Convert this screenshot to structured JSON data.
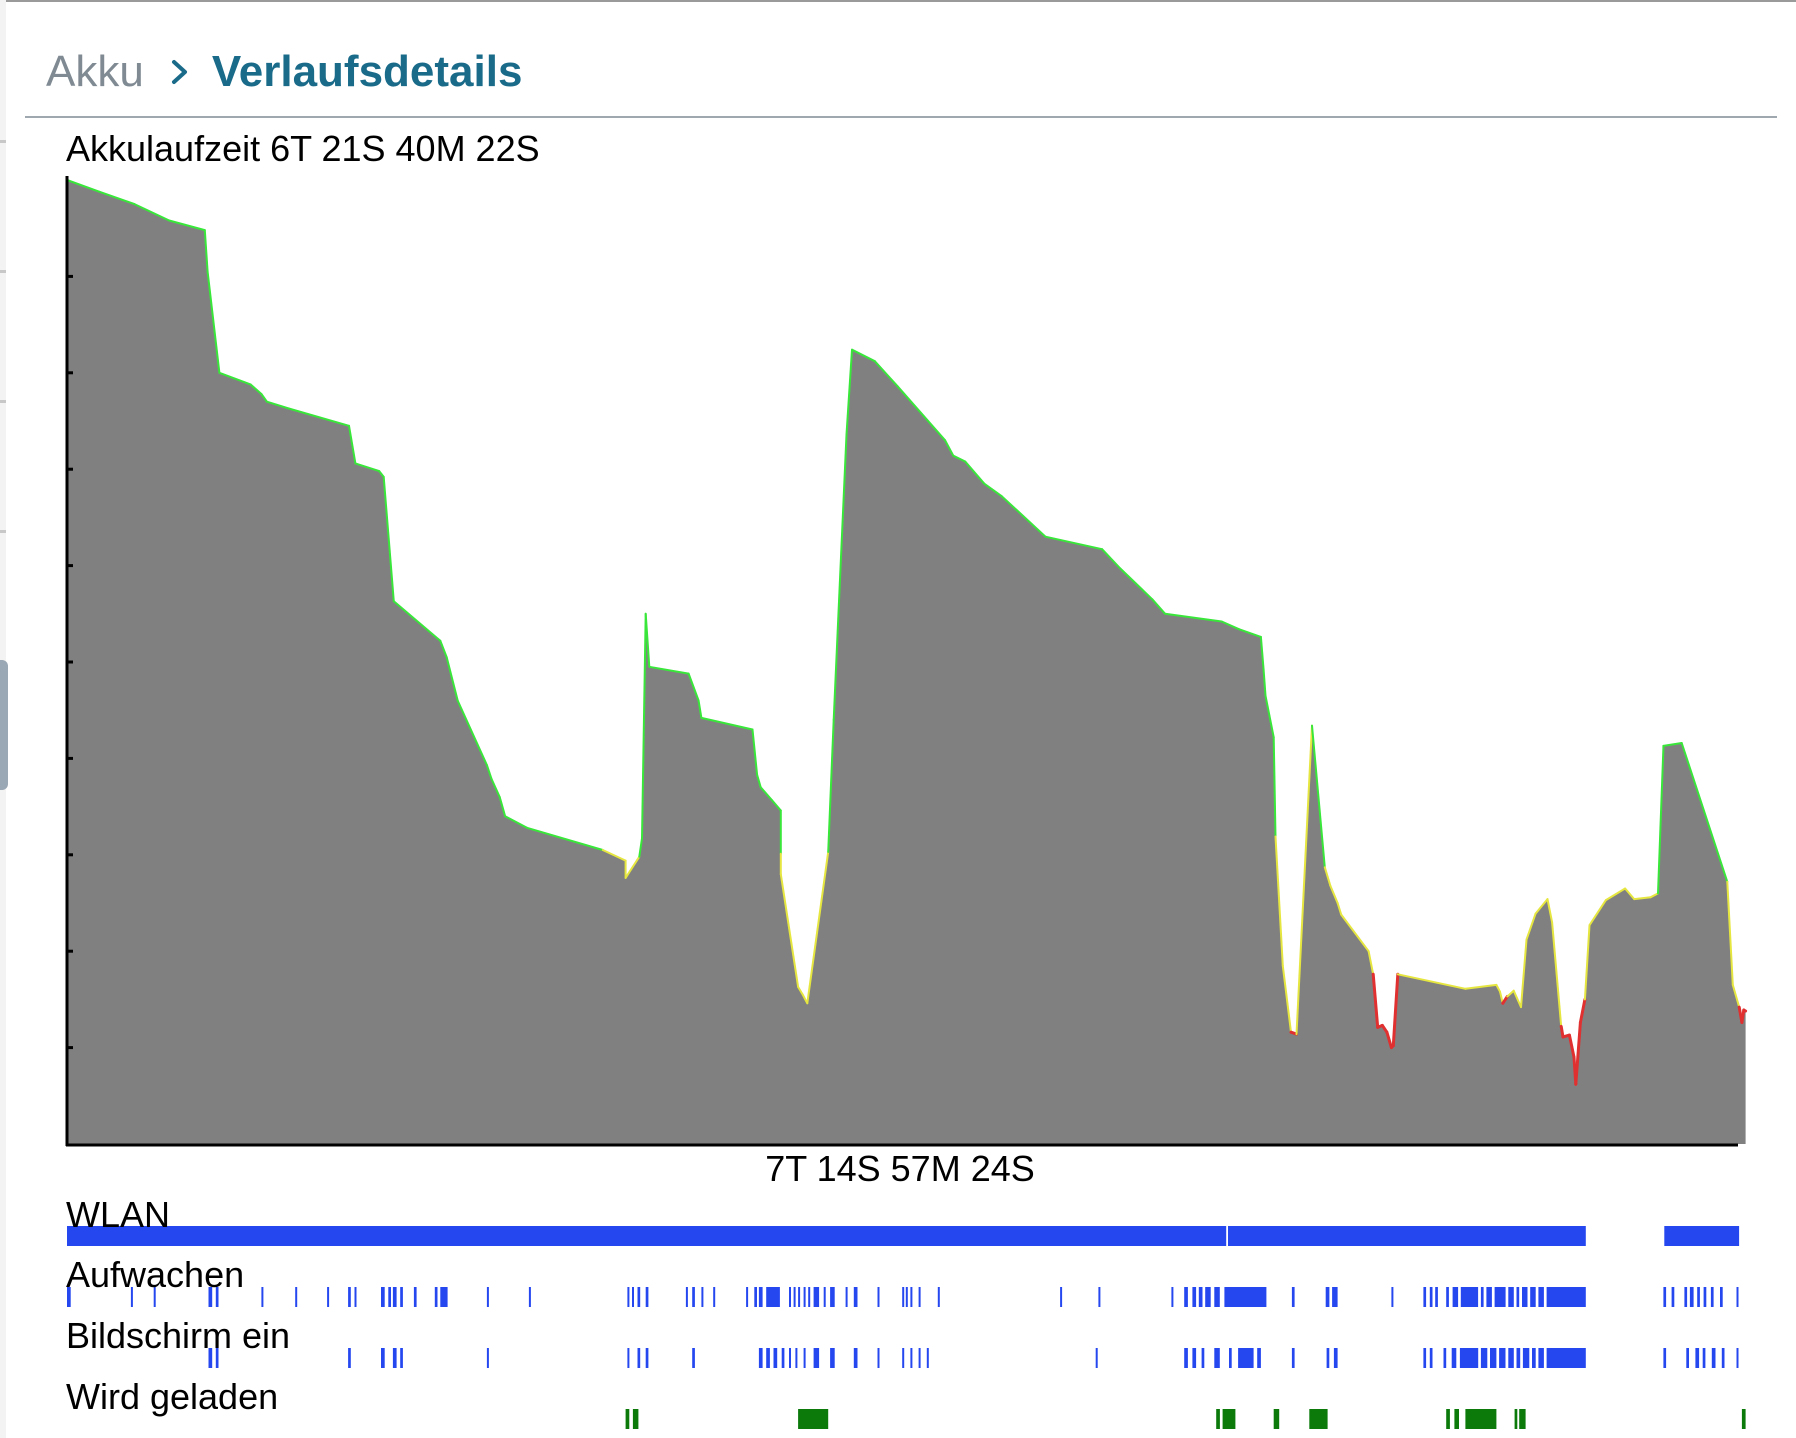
{
  "header": {
    "parent": "Akku",
    "current": "Verlaufsdetails"
  },
  "graph": {
    "battery_time_label": "Akkulaufzeit 6T 21S 40M 22S",
    "end_time_label": "7T 14S 57M 24S"
  },
  "tracks": [
    {
      "label": "WLAN",
      "color": "#2547f0"
    },
    {
      "label": "Aufwachen",
      "color": "#2547f0"
    },
    {
      "label": "Bildschirm ein",
      "color": "#2547f0"
    },
    {
      "label": "Wird geladen",
      "color": "#0b7a0b"
    }
  ],
  "colors": {
    "area_fill": "#808080",
    "level_high": "#39e63a",
    "level_mid": "#e6e640",
    "level_low": "#e03030",
    "accent": "#1a6b8a"
  },
  "chart_data": {
    "type": "area",
    "title": "Akkulaufzeit 6T 21S 40M 22S",
    "xlabel": "7T 14S 57M 24S",
    "ylabel": "",
    "x_unit": "hours since start",
    "x_range": [
      0,
      182.96
    ],
    "ylim": [
      0,
      100
    ],
    "grid": false,
    "color_thresholds": {
      "high_above": 30,
      "low_below": 15
    },
    "series": [
      {
        "name": "",
        "x": [
          0,
          3.5,
          7.4,
          11.2,
          15.1,
          15.4,
          16.7,
          20.1,
          21.3,
          21.9,
          24.3,
          30.9,
          31.6,
          34.2,
          34.7,
          35.8,
          40.9,
          41.6,
          42.8,
          46.0,
          46.5,
          47.4,
          48.0,
          50.4,
          58.7,
          61.2,
          61.2,
          62.7,
          63.0,
          63.4,
          63.8,
          68.1,
          69.2,
          69.5,
          75.1,
          75.6,
          76.0,
          77.2,
          78.2,
          78.2,
          78.2,
          80.1,
          80.6,
          81.1,
          83.4,
          84.0,
          85.4,
          86.0,
          88.5,
          91.0,
          96.2,
          97.1,
          98.4,
          100.5,
          102.4,
          107.2,
          113.4,
          115.4,
          118.9,
          120.3,
          126.5,
          128.4,
          130.8,
          131.1,
          131.3,
          132.2,
          132.4,
          133.2,
          134.1,
          134.7,
          136.4,
          137.8,
          138.4,
          139.2,
          139.6,
          142.6,
          143.1,
          143.6,
          144.1,
          144.6,
          145.1,
          145.3,
          145.8,
          153.2,
          156.6,
          157.0,
          157.3,
          157.8,
          158.5,
          159.3,
          159.9,
          160.9,
          162.2,
          162.7,
          163.7,
          163.9,
          164.6,
          165.1,
          165.3,
          165.8,
          166.3,
          166.8,
          168.6,
          170.7,
          171.7,
          173.5,
          174.3,
          174.9,
          174.9,
          176.9,
          181.9,
          182.5,
          183.2,
          183.5,
          183.7,
          183.9
        ],
        "values": [
          100,
          98.8,
          97.5,
          95.8,
          94.8,
          90.5,
          80.0,
          78.8,
          77.8,
          77.0,
          76.3,
          74.5,
          70.6,
          69.8,
          69.2,
          56.3,
          52.2,
          50.5,
          46.0,
          39.3,
          37.9,
          36.0,
          34.0,
          32.8,
          30.5,
          29.4,
          27.6,
          29.8,
          31.7,
          55.0,
          49.5,
          48.8,
          46.0,
          44.2,
          43.0,
          38.3,
          37.0,
          35.7,
          34.6,
          30.1,
          28.0,
          16.3,
          15.5,
          14.6,
          30.3,
          44.0,
          73.6,
          82.4,
          81.2,
          78.6,
          73.0,
          71.4,
          70.8,
          68.5,
          67.2,
          63.0,
          61.7,
          59.7,
          56.5,
          55.0,
          54.2,
          53.4,
          52.6,
          49.2,
          46.5,
          42.2,
          31.9,
          18.5,
          11.6,
          11.4,
          43.4,
          28.7,
          26.8,
          25.0,
          23.8,
          20.0,
          17.6,
          12.1,
          12.3,
          11.6,
          10.0,
          10.2,
          17.6,
          16.1,
          16.5,
          15.8,
          14.6,
          15.3,
          15.9,
          14.2,
          21.2,
          23.9,
          25.4,
          23.0,
          12.2,
          11.1,
          11.3,
          9.0,
          6.2,
          12.6,
          15.0,
          22.7,
          25.3,
          26.5,
          25.4,
          25.6,
          26.0,
          41.1,
          41.3,
          41.6,
          27.2,
          16.5,
          14.2,
          12.6,
          13.9,
          13.8
        ]
      }
    ]
  },
  "activity": {
    "wifi": [
      [
        0,
        127
      ],
      [
        127.2,
        166.4
      ],
      [
        175,
        183.2
      ]
    ],
    "wake": [
      [
        0,
        0.4
      ],
      [
        7.0,
        7.2
      ],
      [
        9.5,
        9.6
      ],
      [
        15.5,
        15.9
      ],
      [
        16.3,
        16.6
      ],
      [
        21.3,
        21.5
      ],
      [
        25.0,
        25.2
      ],
      [
        28.5,
        28.7
      ],
      [
        30.8,
        31.1
      ],
      [
        31.5,
        31.7
      ],
      [
        34.4,
        34.8
      ],
      [
        35.2,
        35.5
      ],
      [
        35.7,
        36.1
      ],
      [
        36.5,
        36.8
      ],
      [
        38.0,
        38.3
      ],
      [
        40.3,
        40.6
      ],
      [
        40.9,
        41.7
      ],
      [
        46.0,
        46.2
      ],
      [
        50.6,
        50.8
      ],
      [
        61.4,
        61.6
      ],
      [
        61.9,
        62.1
      ],
      [
        62.5,
        62.8
      ],
      [
        63.4,
        63.7
      ],
      [
        67.8,
        68.0
      ],
      [
        68.5,
        68.8
      ],
      [
        69.5,
        69.7
      ],
      [
        70.8,
        71.0
      ],
      [
        74.4,
        74.6
      ],
      [
        75.3,
        75.6
      ],
      [
        75.8,
        76.2
      ],
      [
        76.6,
        78.1
      ],
      [
        79.1,
        79.3
      ],
      [
        79.6,
        79.8
      ],
      [
        80.1,
        80.3
      ],
      [
        80.7,
        80.9
      ],
      [
        81.2,
        81.4
      ],
      [
        81.8,
        82.4
      ],
      [
        82.9,
        83.1
      ],
      [
        83.6,
        84.1
      ],
      [
        85.3,
        85.5
      ],
      [
        86.2,
        86.6
      ],
      [
        88.8,
        89.0
      ],
      [
        91.5,
        91.7
      ],
      [
        91.9,
        92.1
      ],
      [
        92.4,
        92.6
      ],
      [
        93.3,
        93.5
      ],
      [
        95.4,
        95.6
      ],
      [
        108.8,
        109.0
      ],
      [
        113.0,
        113.2
      ],
      [
        121.0,
        121.2
      ],
      [
        122.4,
        122.8
      ],
      [
        123.3,
        123.7
      ],
      [
        124.0,
        124.4
      ],
      [
        124.7,
        125.3
      ],
      [
        125.7,
        126.3
      ],
      [
        126.8,
        131.4
      ],
      [
        134.2,
        134.5
      ],
      [
        137.9,
        138.3
      ],
      [
        138.6,
        139.2
      ],
      [
        145.1,
        145.3
      ],
      [
        148.6,
        148.9
      ],
      [
        149.3,
        149.6
      ],
      [
        149.9,
        150.2
      ],
      [
        151.1,
        151.4
      ],
      [
        151.8,
        152.4
      ],
      [
        152.7,
        154.6
      ],
      [
        154.9,
        155.2
      ],
      [
        155.5,
        156.1
      ],
      [
        156.4,
        157.6
      ],
      [
        157.9,
        158.5
      ],
      [
        158.8,
        159.1
      ],
      [
        159.4,
        160.0
      ],
      [
        160.3,
        160.9
      ],
      [
        161.2,
        161.8
      ],
      [
        162.1,
        166.4
      ],
      [
        174.9,
        175.2
      ],
      [
        175.8,
        176.1
      ],
      [
        177.2,
        177.5
      ],
      [
        177.8,
        178.2
      ],
      [
        178.6,
        178.9
      ],
      [
        179.3,
        179.6
      ],
      [
        180.1,
        180.4
      ],
      [
        181.1,
        181.4
      ],
      [
        182.9,
        183.1
      ]
    ],
    "screen": [
      [
        15.5,
        15.9
      ],
      [
        16.3,
        16.6
      ],
      [
        30.8,
        31.1
      ],
      [
        34.4,
        34.8
      ],
      [
        35.7,
        36.1
      ],
      [
        36.5,
        36.8
      ],
      [
        46.0,
        46.2
      ],
      [
        61.4,
        61.6
      ],
      [
        62.5,
        62.8
      ],
      [
        63.4,
        63.7
      ],
      [
        68.5,
        68.8
      ],
      [
        75.8,
        76.2
      ],
      [
        76.6,
        77.0
      ],
      [
        77.4,
        77.8
      ],
      [
        78.3,
        78.6
      ],
      [
        79.1,
        79.3
      ],
      [
        79.8,
        80.0
      ],
      [
        80.7,
        80.9
      ],
      [
        81.8,
        82.4
      ],
      [
        83.6,
        84.1
      ],
      [
        86.2,
        86.6
      ],
      [
        88.8,
        89.0
      ],
      [
        91.5,
        91.7
      ],
      [
        92.4,
        92.6
      ],
      [
        93.3,
        93.5
      ],
      [
        94.2,
        94.4
      ],
      [
        112.7,
        112.9
      ],
      [
        122.4,
        122.8
      ],
      [
        123.3,
        123.7
      ],
      [
        124.3,
        124.6
      ],
      [
        125.7,
        126.3
      ],
      [
        127.3,
        127.6
      ],
      [
        128.3,
        130.0
      ],
      [
        130.4,
        130.8
      ],
      [
        134.2,
        134.5
      ],
      [
        138.0,
        138.3
      ],
      [
        138.8,
        139.2
      ],
      [
        148.6,
        148.9
      ],
      [
        149.3,
        149.6
      ],
      [
        150.8,
        151.1
      ],
      [
        151.7,
        152.2
      ],
      [
        152.6,
        154.6
      ],
      [
        154.9,
        155.6
      ],
      [
        155.9,
        156.6
      ],
      [
        156.9,
        157.6
      ],
      [
        157.9,
        158.5
      ],
      [
        158.8,
        159.2
      ],
      [
        159.5,
        160.2
      ],
      [
        160.5,
        160.9
      ],
      [
        161.2,
        161.8
      ],
      [
        162.1,
        166.4
      ],
      [
        174.9,
        175.2
      ],
      [
        177.4,
        177.7
      ],
      [
        178.4,
        178.8
      ],
      [
        179.2,
        179.5
      ],
      [
        180.2,
        180.6
      ],
      [
        181.3,
        181.6
      ],
      [
        182.9,
        183.1
      ]
    ],
    "charging": [
      [
        61.2,
        61.6
      ],
      [
        62.0,
        62.6
      ],
      [
        80.1,
        83.4
      ],
      [
        125.9,
        126.3
      ],
      [
        126.6,
        128.0
      ],
      [
        132.2,
        132.8
      ],
      [
        136.1,
        138.1
      ],
      [
        151.1,
        151.5
      ],
      [
        152.0,
        152.5
      ],
      [
        153.2,
        156.6
      ],
      [
        158.6,
        158.9
      ],
      [
        159.1,
        159.8
      ],
      [
        183.5,
        183.9
      ]
    ]
  }
}
